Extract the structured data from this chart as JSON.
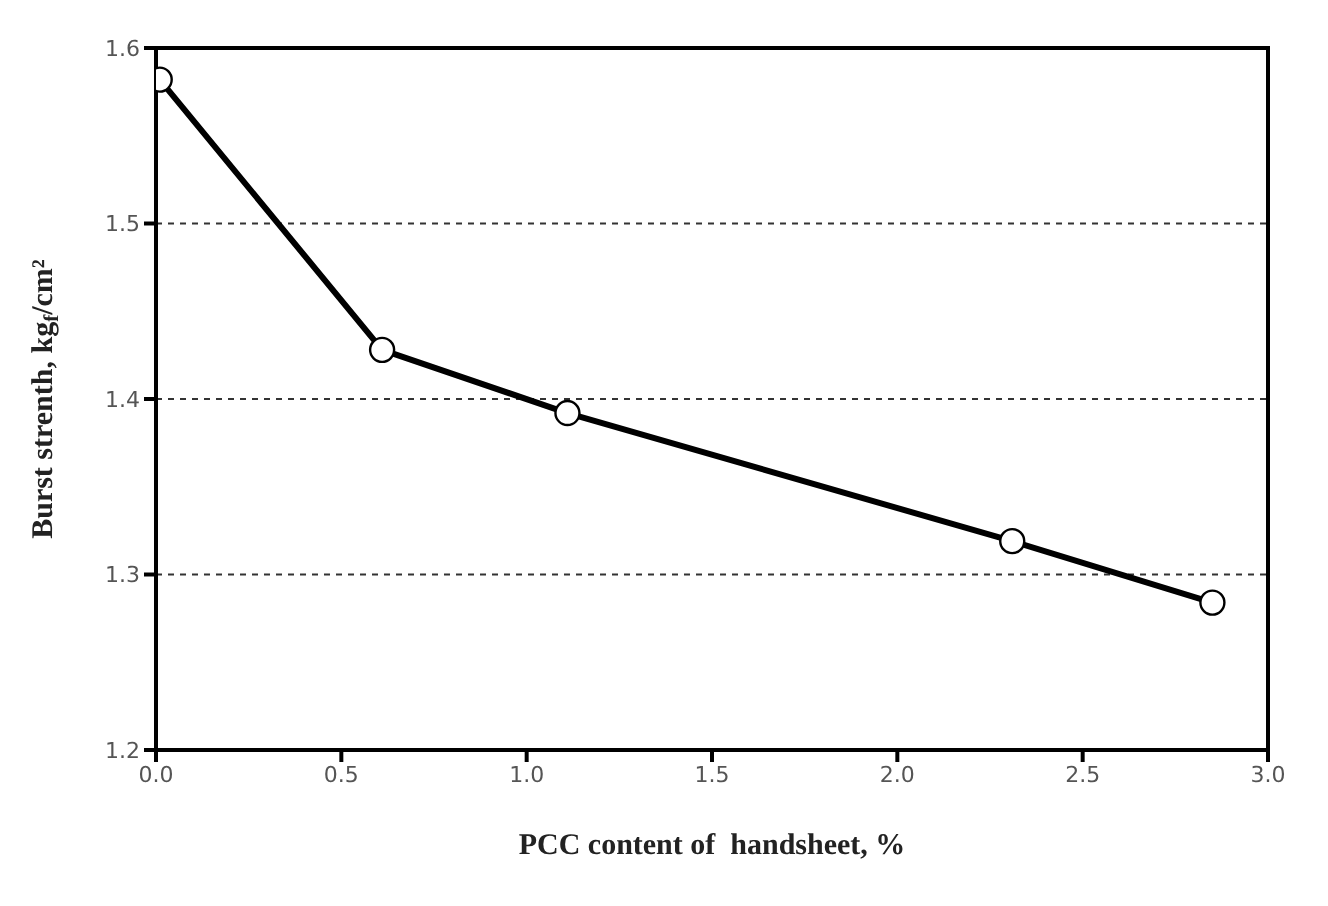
{
  "chart_data": {
    "type": "line",
    "xlabel": "PCC content of  handsheet, %",
    "ylabel": "Burst strenth, kg$_{f}$/cm²",
    "x": [
      0.01,
      0.61,
      1.11,
      2.31,
      2.85
    ],
    "series": [
      {
        "color": "#000000",
        "values": [
          1.582,
          1.428,
          1.392,
          1.319,
          1.284
        ]
      }
    ],
    "xlim": [
      0,
      3
    ],
    "xticks": [
      {
        "value": 0,
        "label": "0.0"
      },
      0.5,
      {
        "value": 1,
        "label": "1.0"
      },
      1.5,
      {
        "value": 2,
        "label": "2.0"
      },
      2.5,
      {
        "value": 3,
        "label": "3.0"
      }
    ],
    "ylim": [
      1.2,
      1.6
    ],
    "yticks": [
      1.2,
      1.3,
      1.4,
      1.5,
      1.6
    ],
    "grid": "y",
    "marker": "circle",
    "line_style": "solid"
  }
}
